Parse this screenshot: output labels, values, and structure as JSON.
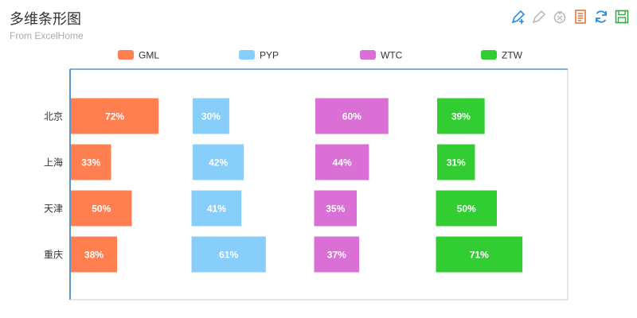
{
  "chart_data": {
    "type": "bar",
    "title": "多维条形图",
    "subtitle": "From ExcelHome",
    "categories": [
      "北京",
      "上海",
      "天津",
      "重庆"
    ],
    "series": [
      {
        "name": "GML",
        "values": [
          72,
          33,
          50,
          38
        ],
        "color": "#ff7f50"
      },
      {
        "name": "PYP",
        "values": [
          30,
          42,
          41,
          61
        ],
        "color": "#87cefa"
      },
      {
        "name": "WTC",
        "values": [
          60,
          44,
          35,
          37
        ],
        "color": "#da70d6"
      },
      {
        "name": "ZTW",
        "values": [
          39,
          31,
          50,
          71
        ],
        "color": "#32cd32"
      }
    ],
    "value_suffix": "%",
    "legend_position": "top",
    "grid": false
  },
  "toolbox": {
    "items": [
      {
        "name": "zoom-pen-icon",
        "color": "#2c8ad4"
      },
      {
        "name": "zoom-reset-icon",
        "color": "#bbbbbb"
      },
      {
        "name": "clear-icon",
        "color": "#bbbbbb"
      },
      {
        "name": "data-view-icon",
        "color": "#e07a3a"
      },
      {
        "name": "refresh-icon",
        "color": "#2c8ad4"
      },
      {
        "name": "save-image-icon",
        "color": "#3aa84a"
      }
    ]
  }
}
